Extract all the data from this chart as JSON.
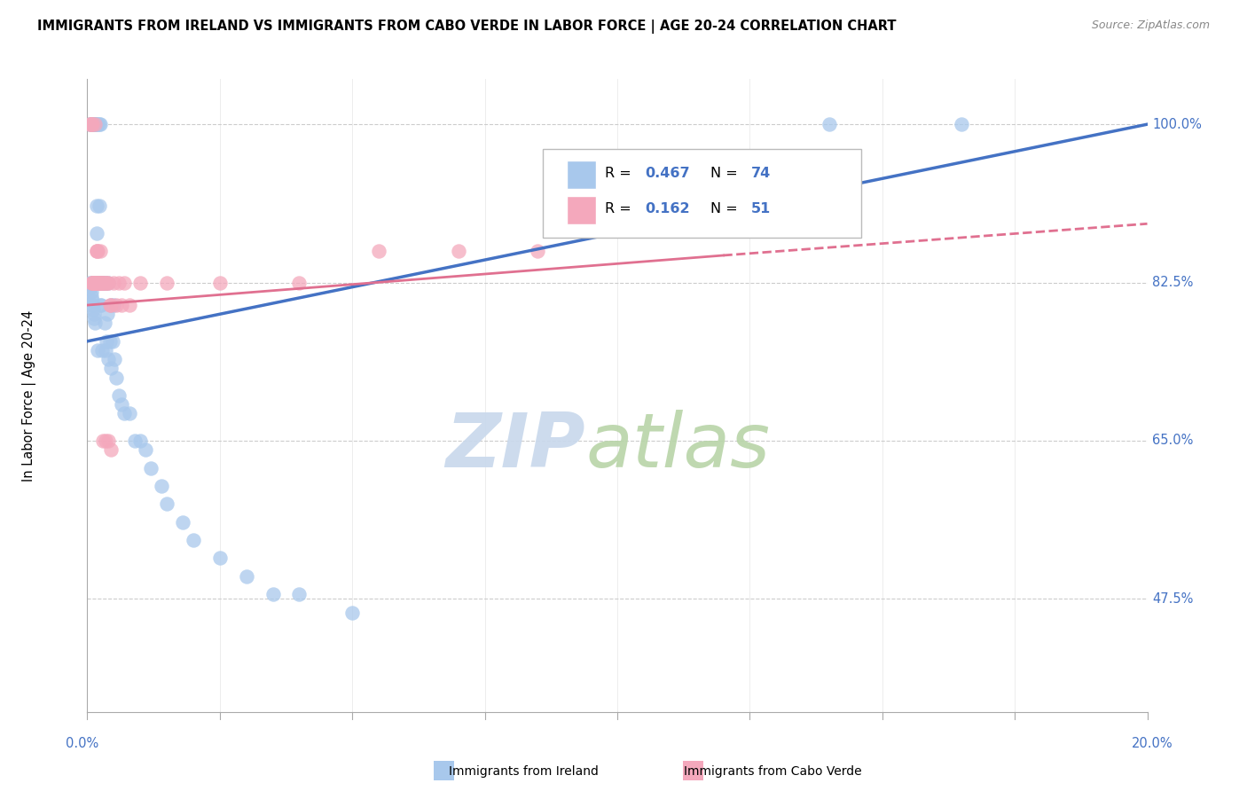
{
  "title": "IMMIGRANTS FROM IRELAND VS IMMIGRANTS FROM CABO VERDE IN LABOR FORCE | AGE 20-24 CORRELATION CHART",
  "source": "Source: ZipAtlas.com",
  "ylabel": "In Labor Force | Age 20-24",
  "yticks": [
    47.5,
    65.0,
    82.5,
    100.0
  ],
  "xmin": 0.0,
  "xmax": 20.0,
  "ymin": 35.0,
  "ymax": 105.0,
  "ireland_R": 0.467,
  "ireland_N": 74,
  "caboverde_R": 0.162,
  "caboverde_N": 51,
  "ireland_color": "#A8C8EC",
  "caboverde_color": "#F4A8BC",
  "ireland_line_color": "#4472C4",
  "caboverde_line_color": "#E07090",
  "watermark_zip": "ZIP",
  "watermark_atlas": "atlas",
  "watermark_color_zip": "#C8D8EC",
  "watermark_color_atlas": "#D8E8C8",
  "grid_color": "#CCCCCC",
  "tick_color": "#4472C4",
  "ireland_scatter_x": [
    0.05,
    0.08,
    0.1,
    0.1,
    0.12,
    0.12,
    0.13,
    0.14,
    0.15,
    0.15,
    0.15,
    0.16,
    0.17,
    0.18,
    0.18,
    0.18,
    0.2,
    0.2,
    0.2,
    0.22,
    0.22,
    0.22,
    0.23,
    0.24,
    0.25,
    0.25,
    0.26,
    0.28,
    0.28,
    0.3,
    0.32,
    0.33,
    0.35,
    0.35,
    0.36,
    0.38,
    0.4,
    0.4,
    0.42,
    0.44,
    0.45,
    0.48,
    0.5,
    0.52,
    0.55,
    0.6,
    0.65,
    0.7,
    0.8,
    0.9,
    1.0,
    1.1,
    1.2,
    1.4,
    1.5,
    1.8,
    2.0,
    2.5,
    3.0,
    3.5,
    0.05,
    0.06,
    0.07,
    0.08,
    0.09,
    0.1,
    0.11,
    0.12,
    0.13,
    0.14,
    4.0,
    5.0,
    16.5,
    14.0
  ],
  "ireland_scatter_y": [
    100.0,
    100.0,
    100.0,
    82.5,
    100.0,
    82.5,
    100.0,
    100.0,
    100.0,
    100.0,
    82.5,
    82.5,
    91.0,
    100.0,
    88.0,
    82.5,
    100.0,
    82.5,
    75.0,
    100.0,
    91.0,
    82.5,
    82.5,
    80.0,
    100.0,
    82.5,
    80.0,
    82.5,
    75.0,
    82.5,
    78.0,
    82.5,
    82.5,
    75.0,
    76.0,
    79.0,
    82.5,
    74.0,
    76.0,
    73.0,
    80.0,
    76.0,
    80.0,
    74.0,
    72.0,
    70.0,
    69.0,
    68.0,
    68.0,
    65.0,
    65.0,
    64.0,
    62.0,
    60.0,
    58.0,
    56.0,
    54.0,
    52.0,
    50.0,
    48.0,
    82.5,
    82.0,
    81.5,
    81.0,
    80.5,
    80.0,
    79.5,
    79.0,
    78.5,
    78.0,
    48.0,
    46.0,
    100.0,
    100.0
  ],
  "caboverde_scatter_x": [
    0.04,
    0.06,
    0.07,
    0.08,
    0.08,
    0.1,
    0.1,
    0.1,
    0.11,
    0.12,
    0.13,
    0.14,
    0.15,
    0.15,
    0.16,
    0.17,
    0.18,
    0.18,
    0.2,
    0.2,
    0.21,
    0.22,
    0.23,
    0.25,
    0.25,
    0.27,
    0.28,
    0.3,
    0.32,
    0.35,
    0.38,
    0.4,
    0.42,
    0.45,
    0.5,
    0.55,
    0.6,
    0.65,
    0.7,
    0.8,
    1.0,
    1.5,
    2.5,
    4.0,
    5.5,
    7.0,
    8.5,
    0.3,
    0.35,
    0.4,
    0.45
  ],
  "caboverde_scatter_y": [
    100.0,
    100.0,
    100.0,
    100.0,
    82.5,
    100.0,
    82.5,
    82.5,
    82.5,
    82.5,
    82.5,
    82.5,
    82.5,
    100.0,
    82.5,
    86.0,
    82.5,
    86.0,
    82.5,
    86.0,
    82.5,
    82.5,
    82.5,
    82.5,
    86.0,
    82.5,
    82.5,
    82.5,
    82.5,
    82.5,
    82.5,
    82.5,
    80.0,
    80.0,
    82.5,
    80.0,
    82.5,
    80.0,
    82.5,
    80.0,
    82.5,
    82.5,
    82.5,
    82.5,
    86.0,
    86.0,
    86.0,
    65.0,
    65.0,
    65.0,
    64.0
  ]
}
